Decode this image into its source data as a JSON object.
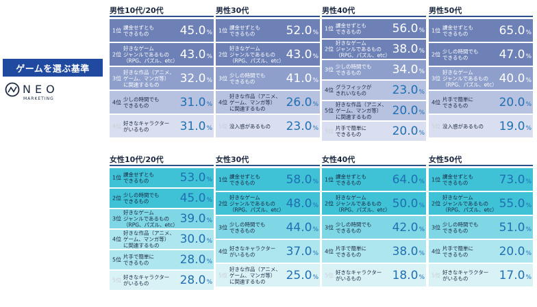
{
  "side_title": "ゲームを選ぶ基準",
  "brand": {
    "name": "NEO",
    "sub": "MARKETING"
  },
  "colors": {
    "male_row_1": "#d9dff0",
    "male_row_2": "#b7c2e0",
    "male_row_3": "#8e9fcc",
    "male_row_4": "#6d81b7",
    "female_row_1": "#d9f2f6",
    "female_row_2": "#aee6ef",
    "female_row_3": "#7fd6e4",
    "female_row_4": "#3fc2d6",
    "rank_faded": "#c9ced8"
  },
  "chart_data": [
    {
      "type": "table",
      "title": "男性10代/20代",
      "rows": [
        {
          "rank": "1位",
          "label": "課金せずとも\nできるもの",
          "value": "45.0",
          "unit": "%"
        },
        {
          "rank": "2位",
          "label": "好きなゲーム\nジャンルであるもの\n（RPG、パズル、etc）",
          "value": "43.0",
          "unit": "%"
        },
        {
          "rank": "3位",
          "label": "好きな作品（アニメ、\nゲーム、マンガ等）\nに関連するもの",
          "value": "32.0",
          "unit": "%"
        },
        {
          "rank": "4位",
          "label": "少しの時間でも\nできるもの",
          "value": "31.0",
          "unit": "%"
        },
        {
          "rank": "4位",
          "label": "好きなキャラクター\nがいるもの",
          "value": "31.0",
          "unit": "%"
        }
      ]
    },
    {
      "type": "table",
      "title": "男性30代",
      "rows": [
        {
          "rank": "1位",
          "label": "課金せずとも\nできるもの",
          "value": "52.0",
          "unit": "%"
        },
        {
          "rank": "2位",
          "label": "好きなゲーム\nジャンルであるもの\n（RPG、パズル、etc）",
          "value": "43.0",
          "unit": "%"
        },
        {
          "rank": "3位",
          "label": "少しの時間でも\nできるもの",
          "value": "41.0",
          "unit": "%"
        },
        {
          "rank": "4位",
          "label": "好きな作品（アニメ、\nゲーム、マンガ等）\nに関連するもの",
          "value": "26.0",
          "unit": "%"
        },
        {
          "rank": "5位",
          "label": "没入感があるもの",
          "value": "23.0",
          "unit": "%"
        }
      ]
    },
    {
      "type": "table",
      "title": "男性40代",
      "rows": [
        {
          "rank": "1位",
          "label": "課金せずとも\nできるもの",
          "value": "56.0",
          "unit": "%"
        },
        {
          "rank": "2位",
          "label": "好きなゲーム\nジャンルであるもの\n（RPG、パズル、etc）",
          "value": "38.0",
          "unit": "%"
        },
        {
          "rank": "3位",
          "label": "少しの時間でも\nできるもの",
          "value": "34.0",
          "unit": "%"
        },
        {
          "rank": "4位",
          "label": "グラフィックが\nきれいなもの",
          "value": "23.0",
          "unit": "%"
        },
        {
          "rank": "5位",
          "label": "好きな作品（アニメ、\nゲーム、マンガ等）\nに関連するもの",
          "value": "20.0",
          "unit": "%"
        },
        {
          "rank": "5位",
          "label": "片手で簡単に\nできるもの",
          "value": "20.0",
          "unit": "%"
        }
      ]
    },
    {
      "type": "table",
      "title": "男性50代",
      "rows": [
        {
          "rank": "1位",
          "label": "課金せずとも\nできるもの",
          "value": "65.0",
          "unit": "%"
        },
        {
          "rank": "2位",
          "label": "少しの時間でも\nできるもの",
          "value": "47.0",
          "unit": "%"
        },
        {
          "rank": "3位",
          "label": "好きなゲーム\nジャンルであるもの\n（RPG、パズル、etc）",
          "value": "40.0",
          "unit": "%"
        },
        {
          "rank": "4位",
          "label": "片手で簡単に\nできるもの",
          "value": "20.0",
          "unit": "%"
        },
        {
          "rank": "5位",
          "label": "没入感があるもの",
          "value": "19.0",
          "unit": "%"
        }
      ]
    },
    {
      "type": "table",
      "title": "女性10代/20代",
      "rows": [
        {
          "rank": "1位",
          "label": "課金せずとも\nできるもの",
          "value": "53.0",
          "unit": "%"
        },
        {
          "rank": "2位",
          "label": "少しの時間でも\nできるもの",
          "value": "45.0",
          "unit": "%"
        },
        {
          "rank": "3位",
          "label": "好きなゲーム\nジャンルであるもの\n（RPG、パズル、etc）",
          "value": "39.0",
          "unit": "%"
        },
        {
          "rank": "4位",
          "label": "好きな作品（アニメ、\nゲーム、マンガ等）\nに関連するもの",
          "value": "30.0",
          "unit": "%"
        },
        {
          "rank": "5位",
          "label": "片手で簡単に\nできるもの",
          "value": "28.0",
          "unit": "%"
        },
        {
          "rank": "5位",
          "label": "好きなキャラクター\nがいるもの",
          "value": "28.0",
          "unit": "%"
        }
      ]
    },
    {
      "type": "table",
      "title": "女性30代",
      "rows": [
        {
          "rank": "1位",
          "label": "課金せずとも\nできるもの",
          "value": "58.0",
          "unit": "%"
        },
        {
          "rank": "2位",
          "label": "好きなゲーム\nジャンルであるもの\n（RPG、パズル、etc）",
          "value": "48.0",
          "unit": "%"
        },
        {
          "rank": "3位",
          "label": "少しの時間でも\nできるもの",
          "value": "44.0",
          "unit": "%"
        },
        {
          "rank": "4位",
          "label": "好きなキャラクター\nがいるもの",
          "value": "37.0",
          "unit": "%"
        },
        {
          "rank": "5位",
          "label": "好きな作品（アニメ、\nゲーム、マンガ等）\nに関連するもの",
          "value": "25.0",
          "unit": "%"
        }
      ]
    },
    {
      "type": "table",
      "title": "女性40代",
      "rows": [
        {
          "rank": "1位",
          "label": "課金せずとも\nできるもの",
          "value": "64.0",
          "unit": "%"
        },
        {
          "rank": "2位",
          "label": "好きなゲーム\nジャンルであるもの\n（RPG、パズル、etc）",
          "value": "50.0",
          "unit": "%"
        },
        {
          "rank": "3位",
          "label": "少しの時間でも\nできるもの",
          "value": "42.0",
          "unit": "%"
        },
        {
          "rank": "4位",
          "label": "片手で簡単に\nできるもの",
          "value": "38.0",
          "unit": "%"
        },
        {
          "rank": "5位",
          "label": "好きなキャラクター\nがいるもの",
          "value": "18.0",
          "unit": "%"
        }
      ]
    },
    {
      "type": "table",
      "title": "女性50代",
      "rows": [
        {
          "rank": "1位",
          "label": "課金せずとも\nできるもの",
          "value": "73.0",
          "unit": "%"
        },
        {
          "rank": "2位",
          "label": "好きなゲーム\nジャンルであるもの\n（RPG、パズル、etc）",
          "value": "55.0",
          "unit": "%"
        },
        {
          "rank": "3位",
          "label": "少しの時間でも\nできるもの",
          "value": "51.0",
          "unit": "%"
        },
        {
          "rank": "4位",
          "label": "片手で簡単に\nできるもの",
          "value": "20.0",
          "unit": "%"
        },
        {
          "rank": "5位",
          "label": "好きなキャラクター\nがいるもの",
          "value": "17.0",
          "unit": "%"
        }
      ]
    }
  ]
}
